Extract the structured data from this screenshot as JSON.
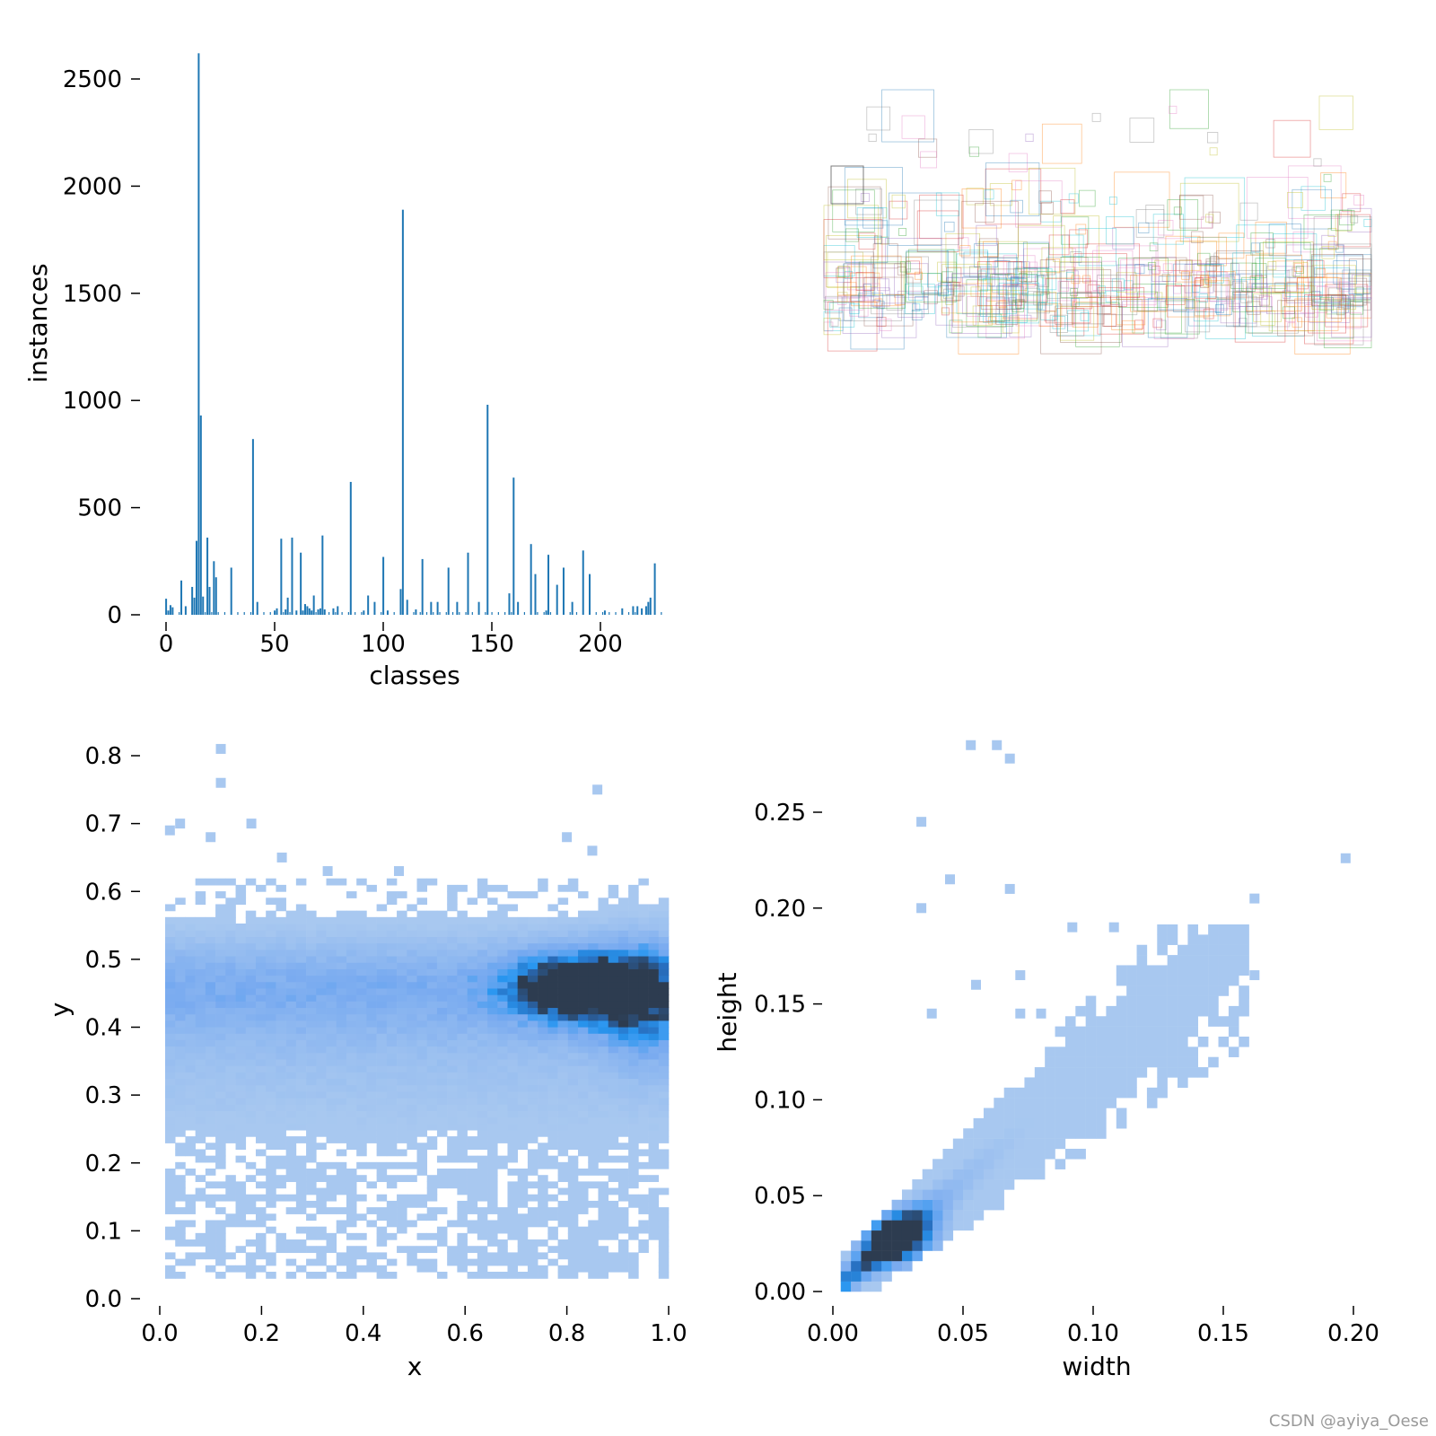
{
  "chart_data": [
    {
      "id": "class-hist",
      "type": "bar",
      "xlabel": "classes",
      "ylabel": "instances",
      "xlim": [
        -5,
        230
      ],
      "ylim": [
        0,
        2620
      ],
      "xticks": [
        0,
        50,
        100,
        150,
        200
      ],
      "yticks": [
        0,
        500,
        1000,
        1500,
        2000,
        2500
      ],
      "color": "#1f77b4",
      "categories": [
        0,
        1,
        2,
        3,
        7,
        9,
        12,
        13,
        14,
        15,
        16,
        17,
        19,
        20,
        22,
        23,
        30,
        40,
        42,
        50,
        51,
        53,
        55,
        56,
        58,
        60,
        62,
        63,
        64,
        65,
        66,
        67,
        68,
        70,
        71,
        72,
        73,
        77,
        79,
        85,
        91,
        93,
        96,
        100,
        102,
        108,
        109,
        111,
        115,
        118,
        122,
        125,
        130,
        134,
        139,
        144,
        148,
        158,
        160,
        162,
        168,
        170,
        175,
        176,
        180,
        183,
        187,
        192,
        195,
        202,
        210,
        215,
        217,
        219,
        221,
        222,
        223,
        225
      ],
      "values": [
        75,
        20,
        45,
        35,
        160,
        40,
        130,
        80,
        345,
        2620,
        930,
        85,
        360,
        130,
        250,
        175,
        220,
        820,
        60,
        20,
        30,
        355,
        25,
        80,
        360,
        20,
        290,
        20,
        50,
        40,
        30,
        20,
        90,
        25,
        30,
        370,
        25,
        30,
        40,
        620,
        20,
        90,
        60,
        270,
        20,
        120,
        1890,
        70,
        25,
        260,
        60,
        60,
        220,
        60,
        290,
        60,
        980,
        100,
        640,
        60,
        330,
        190,
        20,
        280,
        140,
        220,
        60,
        300,
        190,
        20,
        30,
        40,
        40,
        30,
        40,
        60,
        80,
        240
      ]
    },
    {
      "id": "label-boxes",
      "type": "scatter",
      "note_colors": [
        "#1f77b4",
        "#2ca02c",
        "#d62728",
        "#9467bd",
        "#8c564b",
        "#e377c2",
        "#7f7f7f",
        "#bcbd22",
        "#17becf",
        "#ff7f0e"
      ]
    },
    {
      "id": "xy-hist",
      "type": "heatmap",
      "xlabel": "x",
      "ylabel": "y",
      "xlim": [
        0,
        1
      ],
      "ylim": [
        0,
        0.85
      ],
      "xticks": [
        "0.0",
        "0.2",
        "0.4",
        "0.6",
        "0.8",
        "1.0"
      ],
      "yticks": [
        "0.0",
        "0.1",
        "0.2",
        "0.3",
        "0.4",
        "0.5",
        "0.6",
        "0.7",
        "0.8"
      ],
      "bins": 50,
      "core_region": {
        "x": [
          0.0,
          1.0
        ],
        "y": [
          0.05,
          0.6
        ]
      },
      "dense_peak": {
        "x": 0.82,
        "y": 0.46
      },
      "sparse_points": [
        [
          0.12,
          0.81
        ],
        [
          0.12,
          0.76
        ],
        [
          0.86,
          0.75
        ],
        [
          0.18,
          0.7
        ],
        [
          0.02,
          0.69
        ],
        [
          0.1,
          0.68
        ],
        [
          0.8,
          0.68
        ],
        [
          0.24,
          0.65
        ],
        [
          0.85,
          0.66
        ],
        [
          0.04,
          0.7
        ],
        [
          0.33,
          0.63
        ],
        [
          0.47,
          0.63
        ]
      ]
    },
    {
      "id": "wh-hist",
      "type": "heatmap",
      "xlabel": "width",
      "ylabel": "height",
      "xlim": [
        0,
        0.2
      ],
      "ylim": [
        0,
        0.27
      ],
      "xticks": [
        "0.00",
        "0.05",
        "0.10",
        "0.15",
        "0.20"
      ],
      "yticks": [
        "0.00",
        "0.05",
        "0.10",
        "0.15",
        "0.20",
        "0.25"
      ],
      "trend": "height ≈ 1.15 × width",
      "dense_peak": {
        "x": 0.025,
        "y": 0.028
      },
      "sparse_points": [
        [
          0.053,
          0.285
        ],
        [
          0.063,
          0.285
        ],
        [
          0.068,
          0.278
        ],
        [
          0.034,
          0.245
        ],
        [
          0.197,
          0.226
        ],
        [
          0.045,
          0.215
        ],
        [
          0.068,
          0.21
        ],
        [
          0.034,
          0.2
        ],
        [
          0.162,
          0.205
        ],
        [
          0.092,
          0.19
        ],
        [
          0.108,
          0.19
        ],
        [
          0.072,
          0.165
        ],
        [
          0.055,
          0.16
        ],
        [
          0.038,
          0.145
        ],
        [
          0.072,
          0.145
        ],
        [
          0.08,
          0.145
        ],
        [
          0.162,
          0.165
        ],
        [
          0.158,
          0.155
        ]
      ]
    }
  ],
  "watermark": "CSDN @ayiya_Oese"
}
